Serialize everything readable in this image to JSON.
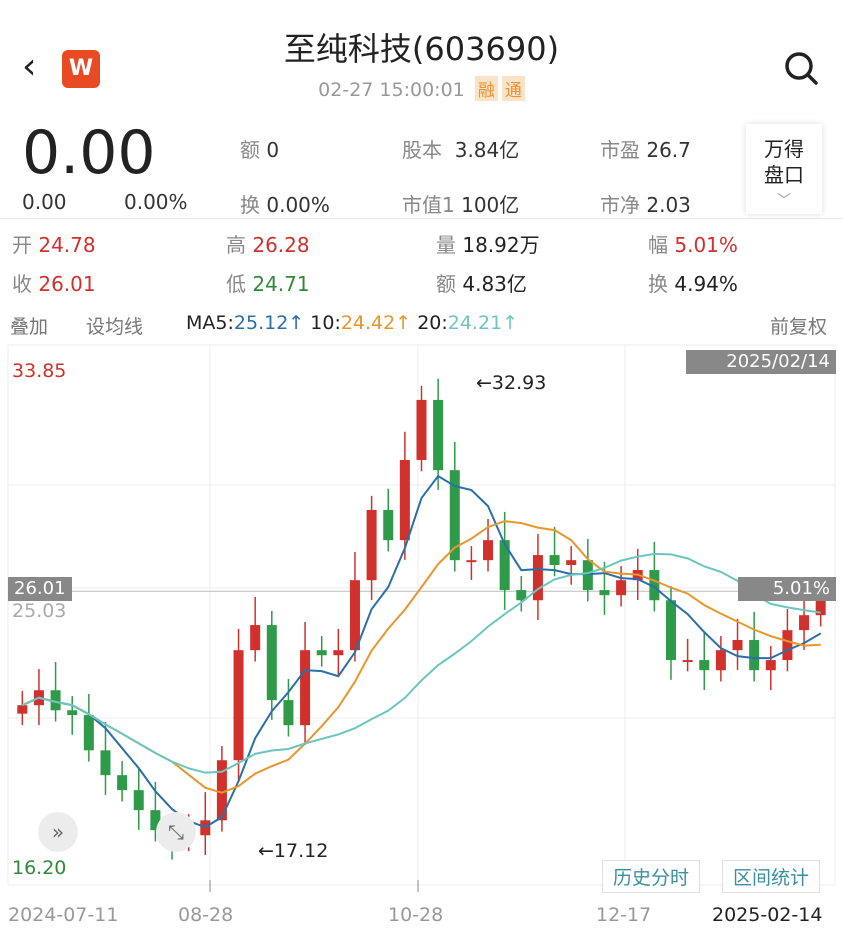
{
  "header": {
    "title": "至纯科技(603690)",
    "datetime": "02-27 15:00:01",
    "tags": [
      "融",
      "通"
    ],
    "logo": "W",
    "back_icon": "chevron-left-icon",
    "search_icon": "search-icon"
  },
  "quote": {
    "price": "0.00",
    "change": "0.00",
    "change_pct": "0.00%",
    "stats": [
      {
        "label": "额",
        "value": "0"
      },
      {
        "label": "换",
        "value": "0.00%"
      },
      {
        "label": "股本",
        "value": "3.84亿"
      },
      {
        "label": "市值1",
        "value": "100亿"
      },
      {
        "label": "市盈",
        "value": "26.7"
      },
      {
        "label": "市净",
        "value": "2.03"
      }
    ],
    "wind_button": [
      "万得",
      "盘口"
    ]
  },
  "ohlc": [
    {
      "label": "开",
      "value": "24.78"
    },
    {
      "label": "高",
      "value": "26.28"
    },
    {
      "label": "量",
      "value": "18.92万"
    },
    {
      "label": "幅",
      "value": "5.01%"
    },
    {
      "label": "收",
      "value": "26.01"
    },
    {
      "label": "低",
      "value": "24.71"
    },
    {
      "label": "额",
      "value": "4.83亿"
    },
    {
      "label": "换",
      "value": "4.94%"
    }
  ],
  "toolbar": {
    "overlay": "叠加",
    "set_ma": "设均线",
    "ma5_label": "MA5:",
    "ma5": "25.12↑",
    "ma10_label": "10:",
    "ma10": "24.42↑",
    "ma20_label": "20:",
    "ma20": "24.21↑",
    "adjust": "前复权"
  },
  "chart": {
    "top_price": "33.85",
    "bottom_price": "16.20",
    "last_close": "26.01",
    "ref_price": "25.03",
    "last_pct": "5.01%",
    "date_badge": "2025/02/14",
    "high_note": "←32.93",
    "low_note": "←17.12",
    "buttons": [
      "历史分时",
      "区间统计"
    ],
    "x_labels": [
      "2024-07-11",
      "08-28",
      "10-28",
      "12-17",
      "2025-02-14"
    ]
  },
  "colors": {
    "up": "#d0312d",
    "down": "#2f9a4a",
    "ma5": "#2a6fa8",
    "ma10": "#e8962a",
    "ma20": "#6cc6c0"
  },
  "chart_data": {
    "type": "candlestick",
    "ylim": [
      16.2,
      33.85
    ],
    "closes": [
      21.97,
      22.5,
      21.79,
      21.62,
      20.37,
      19.49,
      18.96,
      18.25,
      17.54,
      17.2,
      17.36,
      17.89,
      20.02,
      23.92,
      24.81,
      22.15,
      21.26,
      23.92,
      23.74,
      23.92,
      26.4,
      28.89,
      27.82,
      30.66,
      32.79,
      30.3,
      27.11,
      27.11,
      27.82,
      26.05,
      25.69,
      27.29,
      26.94,
      27.11,
      26.05,
      25.87,
      26.4,
      26.76,
      25.69,
      23.57,
      23.57,
      23.21,
      23.92,
      24.28,
      23.21,
      23.57,
      24.63,
      25.16,
      26.01
    ]
  }
}
